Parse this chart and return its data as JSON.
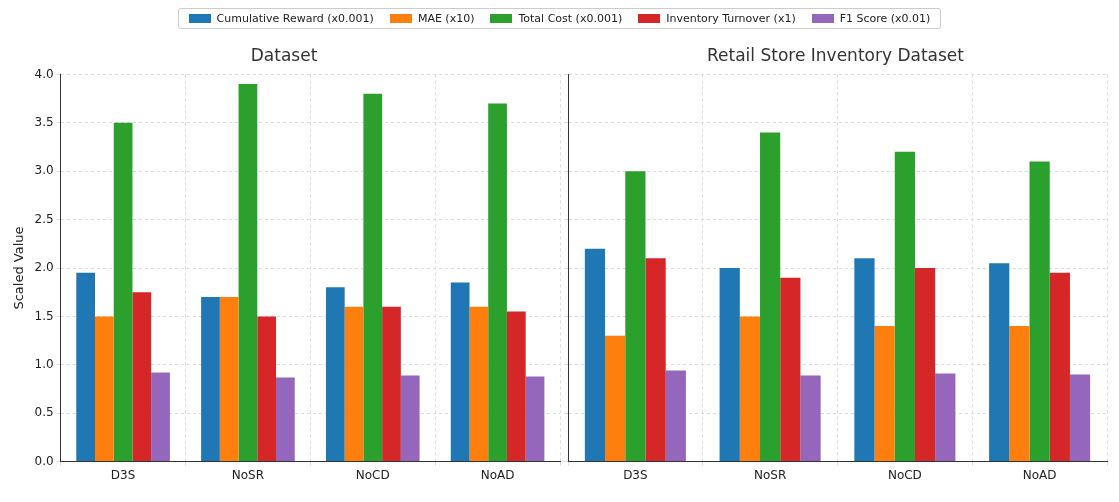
{
  "chart_data": [
    {
      "type": "bar",
      "title": "Dataset",
      "ylabel": "Scaled Value",
      "categories": [
        "D3S",
        "NoSR",
        "NoCD",
        "NoAD"
      ],
      "ylim": [
        0,
        4
      ],
      "yticks": [
        {
          "value": 0,
          "label": "0.0"
        },
        0.5,
        {
          "value": 1,
          "label": "1.0"
        },
        1.5,
        {
          "value": 2,
          "label": "2.0"
        },
        2.5,
        {
          "value": 3,
          "label": "3.0"
        },
        3.5,
        {
          "value": 4,
          "label": "4.0"
        }
      ],
      "grid": true,
      "legend": "top",
      "series": [
        {
          "name": "Cumulative Reward (x0.001)",
          "color": "#1f77b4",
          "values": [
            1.95,
            1.7,
            1.8,
            1.85
          ]
        },
        {
          "name": "MAE (x10)",
          "color": "#ff7f0e",
          "values": [
            1.5,
            1.7,
            1.6,
            1.6
          ]
        },
        {
          "name": "Total Cost (x0.001)",
          "color": "#2ca02c",
          "values": [
            3.5,
            3.9,
            3.8,
            3.7
          ]
        },
        {
          "name": "Inventory Turnover (x1)",
          "color": "#d62728",
          "values": [
            1.75,
            1.5,
            1.6,
            1.55
          ]
        },
        {
          "name": "F1 Score (x0.01)",
          "color": "#9467bd",
          "values": [
            0.92,
            0.87,
            0.89,
            0.88
          ]
        }
      ]
    },
    {
      "type": "bar",
      "title": "Retail Store Inventory Dataset",
      "categories": [
        "D3S",
        "NoSR",
        "NoCD",
        "NoAD"
      ],
      "ylim": [
        0,
        4
      ],
      "yticks": [
        0,
        0.5,
        1,
        1.5,
        2,
        2.5,
        3,
        3.5,
        4
      ],
      "grid": true,
      "tick_labels": "x",
      "series": [
        {
          "color": "#1f77b4",
          "values": [
            2.2,
            2.0,
            2.1,
            2.05
          ]
        },
        {
          "color": "#ff7f0e",
          "values": [
            1.3,
            1.5,
            1.4,
            1.4
          ]
        },
        {
          "color": "#2ca02c",
          "values": [
            3.0,
            3.4,
            3.2,
            3.1
          ]
        },
        {
          "color": "#d62728",
          "values": [
            2.1,
            1.9,
            2.0,
            1.95
          ]
        },
        {
          "color": "#9467bd",
          "values": [
            0.94,
            0.89,
            0.91,
            0.9
          ]
        }
      ]
    }
  ]
}
